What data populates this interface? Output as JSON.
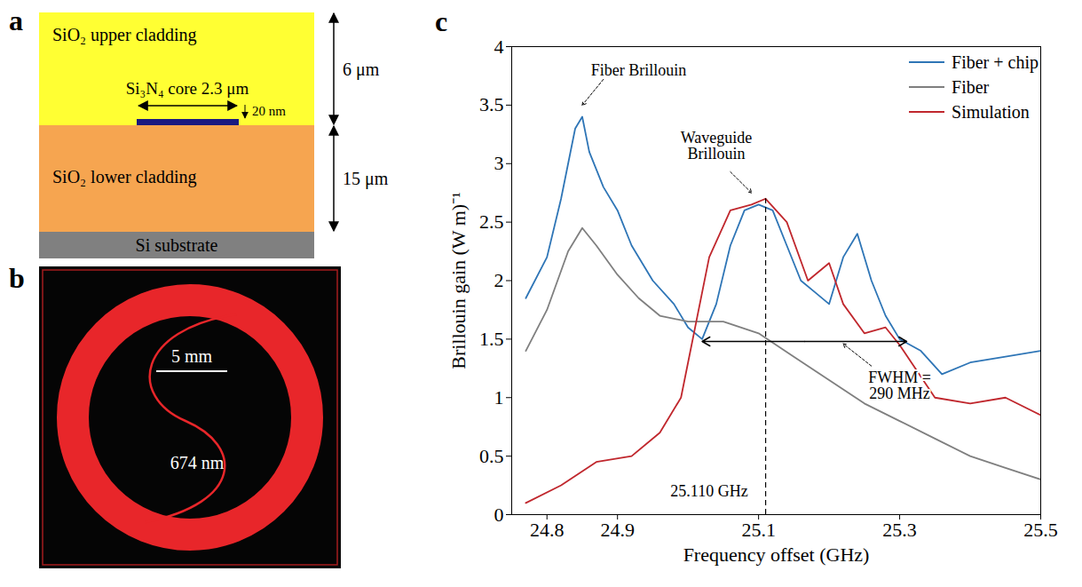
{
  "panel_a": {
    "letter": "a",
    "layers": [
      {
        "label": "SiO₂ upper cladding",
        "color": "#ffff33",
        "thickness_label": "6 μm"
      },
      {
        "label": "SiO₂ lower cladding",
        "color": "#f6a550",
        "thickness_label": "15 μm"
      },
      {
        "label": "Si substrate",
        "color": "#808080"
      }
    ],
    "core": {
      "label": "Si₃N₄ core 2.3 μm",
      "thickness_label": "20 nm",
      "color": "#1a1a80"
    }
  },
  "panel_b": {
    "letter": "b",
    "scale_label": "5 mm",
    "wavelength_label": "674 nm",
    "color": "#e8262a"
  },
  "chart_data": {
    "type": "line",
    "letter": "c",
    "xlabel": "Frequency offset (GHz)",
    "ylabel": "Brillouin gain (W m)⁻¹",
    "xlim": [
      24.75,
      25.5
    ],
    "xticks": [
      24.8,
      24.9,
      25.1,
      25.3,
      25.5
    ],
    "ylim": [
      0,
      4
    ],
    "yticks": [
      0,
      0.5,
      1,
      1.5,
      2,
      2.5,
      3,
      3.5,
      4
    ],
    "grid": false,
    "legend": "top-right",
    "series": [
      {
        "name": "Fiber + chip",
        "color": "#2e75b6",
        "x": [
          24.77,
          24.8,
          24.82,
          24.84,
          24.85,
          24.86,
          24.88,
          24.9,
          24.92,
          24.95,
          24.98,
          25.0,
          25.02,
          25.04,
          25.06,
          25.08,
          25.1,
          25.12,
          25.14,
          25.16,
          25.18,
          25.2,
          25.22,
          25.24,
          25.26,
          25.28,
          25.3,
          25.33,
          25.36,
          25.4,
          25.45,
          25.5
        ],
        "values": [
          1.85,
          2.2,
          2.7,
          3.3,
          3.4,
          3.1,
          2.8,
          2.6,
          2.3,
          2.0,
          1.8,
          1.6,
          1.5,
          1.8,
          2.3,
          2.6,
          2.65,
          2.6,
          2.3,
          2.0,
          1.9,
          1.8,
          2.2,
          2.4,
          2.0,
          1.7,
          1.5,
          1.4,
          1.2,
          1.3,
          1.35,
          1.4
        ]
      },
      {
        "name": "Fiber",
        "color": "#7f7f7f",
        "x": [
          24.77,
          24.8,
          24.83,
          24.85,
          24.87,
          24.9,
          24.93,
          24.96,
          25.0,
          25.05,
          25.1,
          25.15,
          25.2,
          25.25,
          25.3,
          25.35,
          25.4,
          25.45,
          25.5
        ],
        "values": [
          1.4,
          1.75,
          2.25,
          2.45,
          2.3,
          2.05,
          1.85,
          1.7,
          1.65,
          1.65,
          1.55,
          1.35,
          1.15,
          0.95,
          0.8,
          0.65,
          0.5,
          0.4,
          0.3
        ]
      },
      {
        "name": "Simulation",
        "color": "#c0272d",
        "x": [
          24.77,
          24.82,
          24.87,
          24.92,
          24.96,
          24.99,
          25.01,
          25.03,
          25.06,
          25.09,
          25.11,
          25.14,
          25.17,
          25.2,
          25.22,
          25.25,
          25.28,
          25.3,
          25.35,
          25.4,
          25.45,
          25.5
        ],
        "values": [
          0.1,
          0.25,
          0.45,
          0.5,
          0.7,
          1.0,
          1.6,
          2.2,
          2.6,
          2.65,
          2.7,
          2.5,
          2.0,
          2.15,
          1.8,
          1.55,
          1.6,
          1.45,
          1.0,
          0.95,
          1.0,
          0.85
        ]
      }
    ],
    "annotations": [
      {
        "text": [
          "Fiber Brillouin"
        ],
        "x": 24.93,
        "y": 3.8,
        "arrow": [
          24.88,
          3.72,
          24.85,
          3.5
        ]
      },
      {
        "text": [
          "Waveguide",
          "Brillouin"
        ],
        "x": 25.04,
        "y": 3.15,
        "arrow": [
          25.06,
          2.93,
          25.09,
          2.75
        ]
      },
      {
        "text": [
          "25.110 GHz"
        ],
        "x": 25.03,
        "y": 0.2
      },
      {
        "text": [
          "FWHM =",
          "290 MHz"
        ],
        "x": 25.3,
        "y": 1.1,
        "arrow": [
          25.26,
          1.27,
          25.22,
          1.46
        ]
      }
    ],
    "vline": {
      "x": 25.11,
      "y_top": 2.7
    },
    "fwhm_arrow": {
      "x": [
        25.02,
        25.31
      ],
      "y": 1.48
    }
  }
}
